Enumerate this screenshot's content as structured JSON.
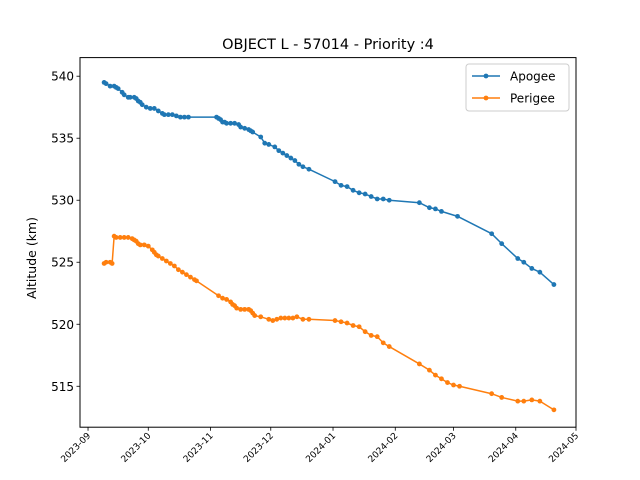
{
  "chart_data": {
    "type": "line",
    "title": "OBJECT L - 57014 - Priority :4",
    "xlabel": "",
    "ylabel": "Altitude (km)",
    "xlim": [
      "2023-08-28",
      "2024-05-01"
    ],
    "ylim": [
      511.7,
      541.5
    ],
    "x_ticks": [
      "2023-09",
      "2023-10",
      "2023-11",
      "2023-12",
      "2024-01",
      "2024-02",
      "2024-03",
      "2024-04",
      "2024-05"
    ],
    "y_ticks": [
      515,
      520,
      525,
      530,
      535,
      540
    ],
    "grid": false,
    "legend_position": "top-right",
    "series": [
      {
        "name": "Apogee",
        "color": "#1f77b4",
        "points": [
          [
            "2023-09-09",
            539.5
          ],
          [
            "2023-09-10",
            539.4
          ],
          [
            "2023-09-12",
            539.2
          ],
          [
            "2023-09-14",
            539.2
          ],
          [
            "2023-09-15",
            539.1
          ],
          [
            "2023-09-16",
            539.0
          ],
          [
            "2023-09-18",
            538.7
          ],
          [
            "2023-09-19",
            538.5
          ],
          [
            "2023-09-21",
            538.3
          ],
          [
            "2023-09-22",
            538.3
          ],
          [
            "2023-09-24",
            538.3
          ],
          [
            "2023-09-25",
            538.2
          ],
          [
            "2023-09-26",
            538.0
          ],
          [
            "2023-09-27",
            537.9
          ],
          [
            "2023-09-28",
            537.7
          ],
          [
            "2023-09-30",
            537.5
          ],
          [
            "2023-10-02",
            537.4
          ],
          [
            "2023-10-04",
            537.4
          ],
          [
            "2023-10-06",
            537.2
          ],
          [
            "2023-10-08",
            537.0
          ],
          [
            "2023-10-09",
            536.9
          ],
          [
            "2023-10-11",
            536.9
          ],
          [
            "2023-10-13",
            536.9
          ],
          [
            "2023-10-15",
            536.8
          ],
          [
            "2023-10-17",
            536.7
          ],
          [
            "2023-10-19",
            536.7
          ],
          [
            "2023-10-21",
            536.7
          ],
          [
            "2023-11-04",
            536.7
          ],
          [
            "2023-11-05",
            536.6
          ],
          [
            "2023-11-06",
            536.5
          ],
          [
            "2023-11-07",
            536.3
          ],
          [
            "2023-11-08",
            536.3
          ],
          [
            "2023-11-09",
            536.2
          ],
          [
            "2023-11-11",
            536.2
          ],
          [
            "2023-11-13",
            536.2
          ],
          [
            "2023-11-15",
            536.1
          ],
          [
            "2023-11-16",
            535.9
          ],
          [
            "2023-11-18",
            535.8
          ],
          [
            "2023-11-20",
            535.7
          ],
          [
            "2023-11-21",
            535.6
          ],
          [
            "2023-11-22",
            535.5
          ],
          [
            "2023-11-26",
            535.1
          ],
          [
            "2023-11-28",
            534.6
          ],
          [
            "2023-11-30",
            534.5
          ],
          [
            "2023-12-03",
            534.3
          ],
          [
            "2023-12-05",
            534.0
          ],
          [
            "2023-12-07",
            533.8
          ],
          [
            "2023-12-09",
            533.6
          ],
          [
            "2023-12-11",
            533.4
          ],
          [
            "2023-12-13",
            533.2
          ],
          [
            "2023-12-15",
            532.9
          ],
          [
            "2023-12-17",
            532.7
          ],
          [
            "2023-12-20",
            532.5
          ],
          [
            "2024-01-02",
            531.5
          ],
          [
            "2024-01-05",
            531.2
          ],
          [
            "2024-01-08",
            531.1
          ],
          [
            "2024-01-11",
            530.8
          ],
          [
            "2024-01-14",
            530.6
          ],
          [
            "2024-01-17",
            530.5
          ],
          [
            "2024-01-20",
            530.3
          ],
          [
            "2024-01-23",
            530.1
          ],
          [
            "2024-01-26",
            530.1
          ],
          [
            "2024-01-29",
            530.0
          ],
          [
            "2024-02-13",
            529.8
          ],
          [
            "2024-02-18",
            529.4
          ],
          [
            "2024-02-21",
            529.3
          ],
          [
            "2024-02-24",
            529.1
          ],
          [
            "2024-03-03",
            528.7
          ],
          [
            "2024-03-20",
            527.3
          ],
          [
            "2024-03-25",
            526.5
          ],
          [
            "2024-04-02",
            525.3
          ],
          [
            "2024-04-05",
            525.0
          ],
          [
            "2024-04-09",
            524.5
          ],
          [
            "2024-04-13",
            524.2
          ],
          [
            "2024-04-20",
            523.2
          ]
        ]
      },
      {
        "name": "Perigee",
        "color": "#ff7f0e",
        "points": [
          [
            "2023-09-09",
            524.9
          ],
          [
            "2023-09-10",
            525.0
          ],
          [
            "2023-09-12",
            525.0
          ],
          [
            "2023-09-13",
            524.9
          ],
          [
            "2023-09-14",
            527.1
          ],
          [
            "2023-09-15",
            527.0
          ],
          [
            "2023-09-17",
            527.0
          ],
          [
            "2023-09-19",
            527.0
          ],
          [
            "2023-09-21",
            527.0
          ],
          [
            "2023-09-23",
            526.9
          ],
          [
            "2023-09-24",
            526.8
          ],
          [
            "2023-09-25",
            526.7
          ],
          [
            "2023-09-26",
            526.5
          ],
          [
            "2023-09-27",
            526.4
          ],
          [
            "2023-09-29",
            526.4
          ],
          [
            "2023-10-01",
            526.3
          ],
          [
            "2023-10-03",
            526.0
          ],
          [
            "2023-10-04",
            525.8
          ],
          [
            "2023-10-05",
            525.6
          ],
          [
            "2023-10-06",
            525.5
          ],
          [
            "2023-10-08",
            525.3
          ],
          [
            "2023-10-10",
            525.1
          ],
          [
            "2023-10-12",
            524.9
          ],
          [
            "2023-10-14",
            524.7
          ],
          [
            "2023-10-16",
            524.4
          ],
          [
            "2023-10-18",
            524.2
          ],
          [
            "2023-10-20",
            524.0
          ],
          [
            "2023-10-22",
            523.8
          ],
          [
            "2023-10-24",
            523.6
          ],
          [
            "2023-10-25",
            523.5
          ],
          [
            "2023-11-05",
            522.3
          ],
          [
            "2023-11-07",
            522.1
          ],
          [
            "2023-11-09",
            522.0
          ],
          [
            "2023-11-11",
            521.8
          ],
          [
            "2023-11-12",
            521.6
          ],
          [
            "2023-11-13",
            521.5
          ],
          [
            "2023-11-14",
            521.3
          ],
          [
            "2023-11-16",
            521.2
          ],
          [
            "2023-11-18",
            521.2
          ],
          [
            "2023-11-20",
            521.2
          ],
          [
            "2023-11-21",
            521.1
          ],
          [
            "2023-11-22",
            520.9
          ],
          [
            "2023-11-23",
            520.7
          ],
          [
            "2023-11-26",
            520.6
          ],
          [
            "2023-11-30",
            520.4
          ],
          [
            "2023-12-02",
            520.3
          ],
          [
            "2023-12-04",
            520.4
          ],
          [
            "2023-12-06",
            520.5
          ],
          [
            "2023-12-08",
            520.5
          ],
          [
            "2023-12-10",
            520.5
          ],
          [
            "2023-12-12",
            520.5
          ],
          [
            "2023-12-14",
            520.6
          ],
          [
            "2023-12-17",
            520.4
          ],
          [
            "2023-12-20",
            520.4
          ],
          [
            "2024-01-02",
            520.3
          ],
          [
            "2024-01-05",
            520.2
          ],
          [
            "2024-01-08",
            520.1
          ],
          [
            "2024-01-11",
            519.9
          ],
          [
            "2024-01-14",
            519.8
          ],
          [
            "2024-01-17",
            519.4
          ],
          [
            "2024-01-20",
            519.1
          ],
          [
            "2024-01-23",
            519.0
          ],
          [
            "2024-01-26",
            518.5
          ],
          [
            "2024-01-29",
            518.2
          ],
          [
            "2024-02-13",
            516.8
          ],
          [
            "2024-02-18",
            516.3
          ],
          [
            "2024-02-21",
            515.9
          ],
          [
            "2024-02-24",
            515.6
          ],
          [
            "2024-02-27",
            515.3
          ],
          [
            "2024-03-01",
            515.1
          ],
          [
            "2024-03-04",
            515.0
          ],
          [
            "2024-03-20",
            514.4
          ],
          [
            "2024-03-25",
            514.1
          ],
          [
            "2024-04-02",
            513.8
          ],
          [
            "2024-04-05",
            513.8
          ],
          [
            "2024-04-09",
            513.9
          ],
          [
            "2024-04-13",
            513.8
          ],
          [
            "2024-04-20",
            513.1
          ]
        ]
      }
    ]
  }
}
